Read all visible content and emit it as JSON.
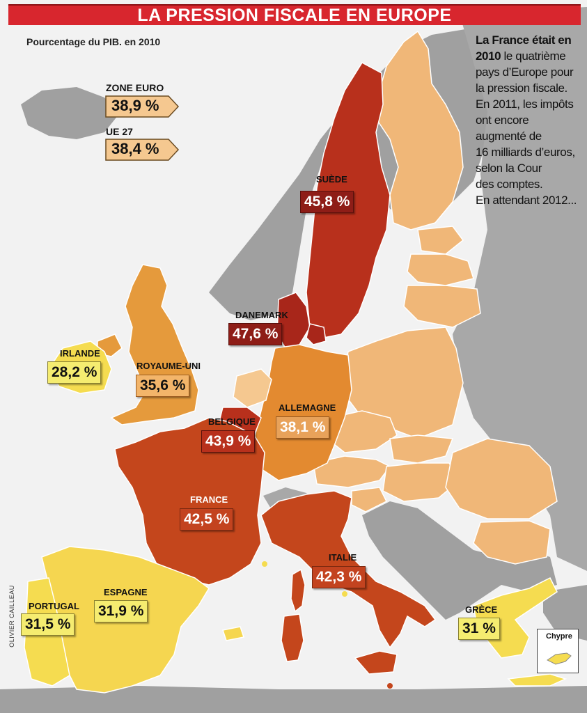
{
  "title": "LA PRESSION FISCALE EN EUROPE",
  "subtitle": "Pourcentage du PIB. en 2010",
  "note": {
    "lines_bold": [
      "La France était en",
      "2010"
    ],
    "text": "le quatrième pays d’Europe pour la pression fiscale. En 2011, les impôts ont encore augmenté de 16 milliards d’euros, selon la Cour des comptes. En attendant 2012...",
    "lead_1": "La France était en",
    "lead_2": "2010",
    "rest_1": " le quatrième",
    "line_3": "pays d’Europe pour",
    "line_4": "la pression fiscale.",
    "line_5": "En 2011, les impôts",
    "line_6": "ont encore",
    "line_7": "augmenté de",
    "line_8": "16 milliards d’euros,",
    "line_9": "selon la Cour",
    "line_10": "des comptes.",
    "line_11": "En attendant 2012..."
  },
  "credit": "OLIVIER CAILLEAU",
  "references": {
    "zone_euro": {
      "label": "ZONE EURO",
      "value": "38,9 %"
    },
    "ue27": {
      "label": "UE 27",
      "value": "38,4 %"
    }
  },
  "countries": {
    "suede": {
      "name": "SUÈDE",
      "value": "45,8 %",
      "pct": 45.8
    },
    "danemark": {
      "name": "DANEMARK",
      "value": "47,6 %",
      "pct": 47.6
    },
    "irlande": {
      "name": "IRLANDE",
      "value": "28,2 %",
      "pct": 28.2
    },
    "royaume_uni": {
      "name": "ROYAUME-UNI",
      "value": "35,6 %",
      "pct": 35.6
    },
    "allemagne": {
      "name": "ALLEMAGNE",
      "value": "38,1 %",
      "pct": 38.1
    },
    "belgique": {
      "name": "BELGIQUE",
      "value": "43,9 %",
      "pct": 43.9
    },
    "france": {
      "name": "FRANCE",
      "value": "42,5 %",
      "pct": 42.5
    },
    "italie": {
      "name": "ITALIE",
      "value": "42,3 %",
      "pct": 42.3
    },
    "portugal": {
      "name": "PORTUGAL",
      "value": "31,5 %",
      "pct": 31.5
    },
    "espagne": {
      "name": "ESPAGNE",
      "value": "31,9 %",
      "pct": 31.9
    },
    "grece": {
      "name": "GRÈCE",
      "value": "31 %",
      "pct": 31
    }
  },
  "inset": {
    "label": "Chypre"
  },
  "colors": {
    "title_bar": "#d8262e",
    "sea": "#f2f2f2",
    "non_eu": "#9e9e9e",
    "darkest": "#a8261a",
    "dark": "#c4461c",
    "orange": "#e38a30",
    "light_orange": "#f0b778",
    "pale": "#f5c890",
    "yellow": "#f5dc50"
  }
}
